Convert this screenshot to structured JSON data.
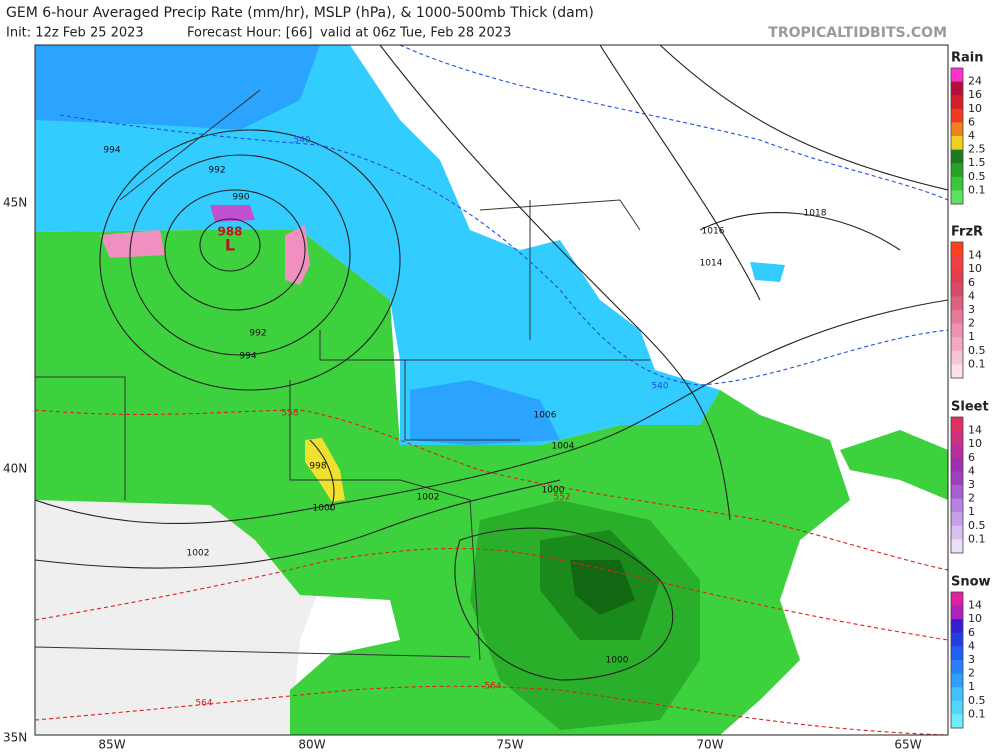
{
  "header": {
    "title": "GEM 6-hour Averaged Precip Rate (mm/hr), MSLP (hPa), & 1000-500mb Thick (dam)",
    "init": "Init: 12z Feb 25 2023",
    "forecast_hour": "Forecast Hour: [66]",
    "valid": "valid at 06z Tue, Feb 28 2023",
    "brand": "TROPICALTIDBITS.COM"
  },
  "axes": {
    "lon_labels": [
      "85W",
      "80W",
      "75W",
      "70W",
      "65W"
    ],
    "lat_labels": [
      "45N",
      "40N",
      "35N"
    ]
  },
  "map_labels": {
    "low": "L",
    "low_pressure": "988",
    "isobars": [
      "994",
      "992",
      "990",
      "992",
      "994",
      "998",
      "1000",
      "1002",
      "1002",
      "1006",
      "1004",
      "1000",
      "1000",
      "1016",
      "1014",
      "1018"
    ],
    "thickness": [
      "540",
      "540",
      "552",
      "558",
      "564",
      "564"
    ]
  },
  "legend": [
    {
      "title": "Rain",
      "labels": [
        "24",
        "16",
        "10",
        "6",
        "4",
        "2.5",
        "1.5",
        "0.5",
        "0.1"
      ],
      "colors": [
        "#ff33cc",
        "#b0103a",
        "#d0202a",
        "#f03a20",
        "#f08020",
        "#f0d020",
        "#1e7a1e",
        "#26a426",
        "#36c836",
        "#5fe05f"
      ]
    },
    {
      "title": "FrzR",
      "labels": [
        "14",
        "10",
        "6",
        "4",
        "3",
        "2",
        "1",
        "0.5",
        "0.1"
      ],
      "colors": [
        "#ff4020",
        "#f04040",
        "#e04050",
        "#d84a6a",
        "#e06080",
        "#e87898",
        "#f090b0",
        "#f4a8c4",
        "#f8c4d8",
        "#fce0ec"
      ]
    },
    {
      "title": "Sleet",
      "labels": [
        "14",
        "10",
        "6",
        "4",
        "3",
        "2",
        "1",
        "0.5",
        "0.1"
      ],
      "colors": [
        "#e03060",
        "#d03080",
        "#b830a0",
        "#a030b0",
        "#9a40c0",
        "#a860d0",
        "#b880e0",
        "#c8a0ea",
        "#d8c0f0",
        "#ece0f8"
      ]
    },
    {
      "title": "Snow",
      "labels": [
        "14",
        "10",
        "6",
        "4",
        "3",
        "2",
        "1",
        "0.5",
        "0.1"
      ],
      "colors": [
        "#e020a0",
        "#b020c0",
        "#3020d0",
        "#1f3fe0",
        "#2060f0",
        "#2a80f8",
        "#30a0ff",
        "#40c0ff",
        "#50d8ff",
        "#70ecff"
      ]
    }
  ]
}
